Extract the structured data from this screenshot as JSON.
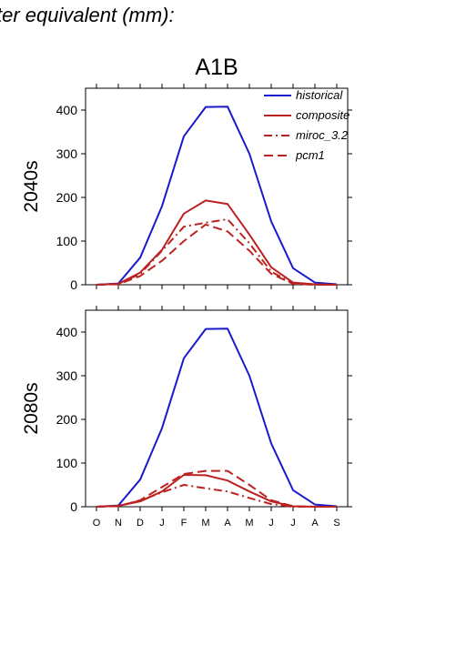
{
  "header": {
    "text": "ter equivalent (mm):"
  },
  "colors": {
    "historical": "#1a1acc",
    "future": "#bb2222"
  },
  "chart_data": [
    {
      "type": "line",
      "title": "A1B",
      "ylabel": "2040s",
      "xlabel": "",
      "categories": [
        "O",
        "N",
        "D",
        "J",
        "F",
        "M",
        "A",
        "M",
        "J",
        "J",
        "A",
        "S"
      ],
      "ylim": [
        0,
        450
      ],
      "yticks": [
        0,
        100,
        200,
        300,
        400
      ],
      "legend": "top-right",
      "series": [
        {
          "name": "historical",
          "style": "solid",
          "color": "#1a1acc",
          "values": [
            0,
            3,
            62,
            180,
            340,
            407,
            408,
            300,
            145,
            38,
            5,
            1
          ]
        },
        {
          "name": "composite",
          "style": "solid",
          "color": "#bb2222",
          "values": [
            0,
            2,
            28,
            80,
            163,
            193,
            185,
            115,
            40,
            5,
            1,
            0
          ]
        },
        {
          "name": "miroc_3.2",
          "style": "dashdot",
          "color": "#bb2222",
          "values": [
            0,
            2,
            25,
            78,
            133,
            142,
            150,
            95,
            30,
            3,
            0,
            0
          ]
        },
        {
          "name": "pcm1",
          "style": "dash",
          "color": "#bb2222",
          "values": [
            0,
            1,
            20,
            55,
            100,
            138,
            122,
            78,
            25,
            2,
            0,
            0
          ]
        }
      ]
    },
    {
      "type": "line",
      "title": "",
      "ylabel": "2080s",
      "xlabel": "",
      "categories": [
        "O",
        "N",
        "D",
        "J",
        "F",
        "M",
        "A",
        "M",
        "J",
        "J",
        "A",
        "S"
      ],
      "ylim": [
        0,
        450
      ],
      "yticks": [
        0,
        100,
        200,
        300,
        400
      ],
      "series": [
        {
          "name": "historical",
          "style": "solid",
          "color": "#1a1acc",
          "values": [
            0,
            3,
            62,
            180,
            340,
            407,
            408,
            300,
            145,
            38,
            5,
            1
          ]
        },
        {
          "name": "composite",
          "style": "solid",
          "color": "#bb2222",
          "values": [
            0,
            2,
            12,
            35,
            73,
            72,
            60,
            35,
            12,
            1,
            0,
            0
          ]
        },
        {
          "name": "miroc_3.2",
          "style": "dashdot",
          "color": "#bb2222",
          "values": [
            0,
            2,
            14,
            33,
            50,
            42,
            35,
            20,
            6,
            0,
            0,
            0
          ]
        },
        {
          "name": "pcm1",
          "style": "dash",
          "color": "#bb2222",
          "values": [
            0,
            1,
            15,
            45,
            75,
            82,
            82,
            50,
            15,
            1,
            0,
            0
          ]
        }
      ]
    }
  ]
}
